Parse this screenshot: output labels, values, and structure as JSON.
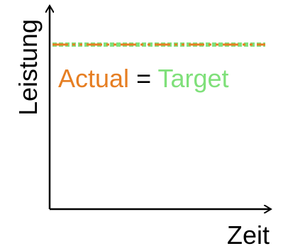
{
  "chart_data": {
    "type": "line",
    "title": "",
    "xlabel": "Zeit",
    "ylabel": "Leistung",
    "ylim": [
      0,
      1
    ],
    "xlim": [
      0,
      1
    ],
    "series": [
      {
        "name": "Target",
        "x": [
          0,
          1
        ],
        "values": [
          0.82,
          0.82
        ],
        "color": "#7fe07a",
        "style": "dotted"
      },
      {
        "name": "Actual",
        "x": [
          0,
          1
        ],
        "values": [
          0.82,
          0.82
        ],
        "color": "#e67e22",
        "style": "dash-dot"
      }
    ],
    "annotation": {
      "actual_label": "Actual",
      "equals_label": "=",
      "target_label": "Target",
      "colors": {
        "actual": "#e67e22",
        "equals": "#000000",
        "target": "#7fe07a"
      }
    },
    "grid": false,
    "legend": "none"
  }
}
